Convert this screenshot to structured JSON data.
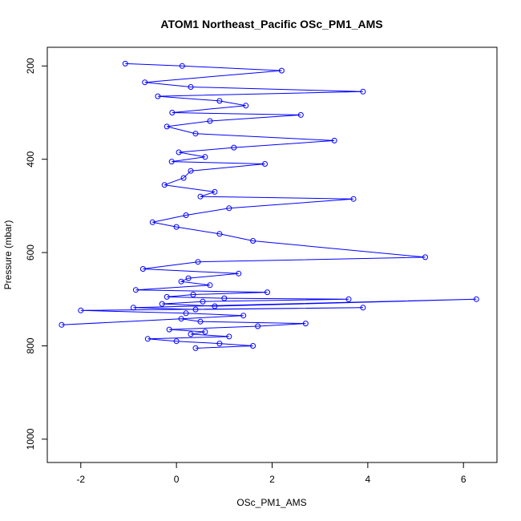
{
  "chart_data": {
    "type": "scatter",
    "title": "ATOM1 Northeast_Pacific OSc_PM1_AMS",
    "xlabel": "OSc_PM1_AMS",
    "ylabel": "Pressure (mbar)",
    "xlim": [
      -2.7,
      6.7
    ],
    "ylim": [
      1050,
      160
    ],
    "y_reversed": true,
    "x_ticks": [
      -2,
      0,
      2,
      4,
      6
    ],
    "y_ticks": [
      200,
      400,
      600,
      800,
      1000
    ],
    "color": "#0000ff",
    "marker": "open-circle",
    "connected": true,
    "series": [
      {
        "x": [
          -1.07,
          0.12,
          2.2,
          -0.66,
          0.3,
          3.9,
          -0.39,
          0.9,
          1.45,
          -0.09,
          2.6,
          0.7,
          -0.2,
          0.4,
          3.3,
          1.2,
          0.05,
          0.6,
          -0.1,
          1.85,
          0.3,
          0.15,
          -0.25,
          0.8,
          0.5,
          3.7,
          1.1,
          0.2,
          -0.5,
          0.0,
          0.9,
          1.6,
          5.2,
          0.45,
          -0.7,
          1.3,
          0.25,
          0.1,
          0.7,
          -0.85,
          1.9,
          0.35,
          -0.2,
          1.0,
          3.6,
          0.55,
          -0.3,
          0.8,
          6.27,
          -0.9,
          0.4,
          3.9,
          -2.0,
          0.2,
          1.4,
          -2.4,
          0.1,
          0.5,
          2.7,
          1.7,
          -0.15,
          0.6,
          0.3,
          1.1,
          -0.6,
          0.0,
          0.9,
          1.6,
          0.4
        ],
        "y": [
          195,
          200,
          210,
          235,
          245,
          255,
          265,
          275,
          285,
          300,
          305,
          318,
          330,
          345,
          360,
          375,
          385,
          395,
          405,
          410,
          425,
          440,
          455,
          470,
          480,
          485,
          505,
          520,
          535,
          545,
          560,
          575,
          610,
          620,
          635,
          645,
          655,
          662,
          670,
          680,
          685,
          690,
          695,
          698,
          700,
          705,
          710,
          715,
          700,
          718,
          722,
          718,
          724,
          730,
          735,
          755,
          742,
          748,
          752,
          758,
          765,
          770,
          775,
          780,
          785,
          790,
          795,
          800,
          805
        ]
      }
    ]
  }
}
